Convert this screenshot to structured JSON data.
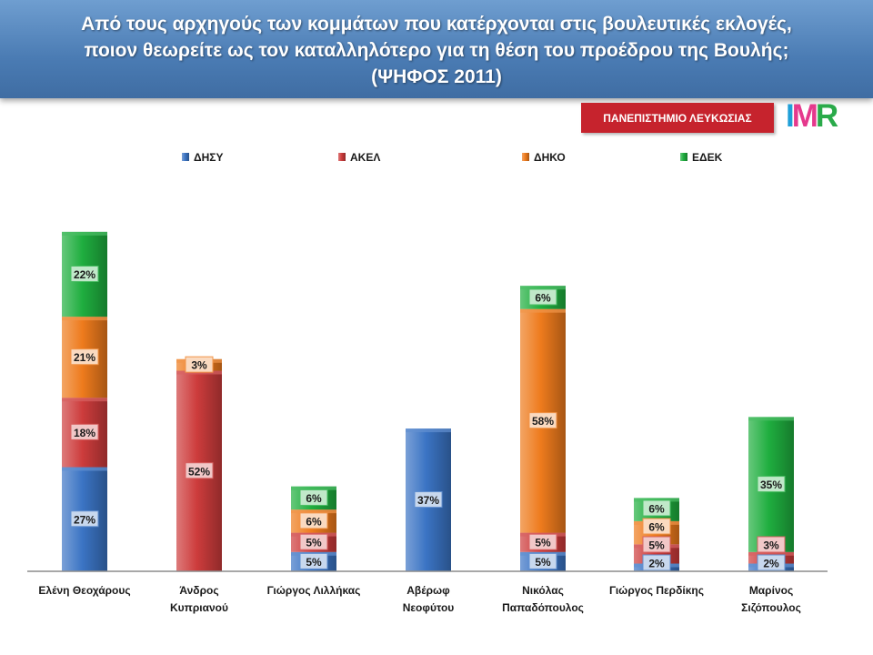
{
  "title": "Από τους αρχηγούς των κομμάτων που κατέρχονται στις βουλευτικές εκλογές, ποιον θεωρείτε ως τον καταλληλότερο για τη θέση του προέδρου της Βουλής; (ΨΗΦΟΣ 2011)",
  "badge": "ΠΑΝΕΠΙΣΤΗΜΙΟ ΛΕΥΚΩΣΙΑΣ",
  "logo": {
    "text": "IMR",
    "colors": [
      "#1f9fd8",
      "#e5398d",
      "#2aaa4a"
    ]
  },
  "chart_data": {
    "type": "bar",
    "stacked": true,
    "categories": [
      [
        "Ελένη Θεοχάρους"
      ],
      [
        "Άνδρος",
        "Κυπριανού"
      ],
      [
        "Γιώργος Λιλλήκας"
      ],
      [
        "Αβέρωφ",
        "Νεοφύτου"
      ],
      [
        "Νικόλας",
        "Παπαδόπουλος"
      ],
      [
        "Γιώργος Περδίκης"
      ],
      [
        "Μαρίνος",
        "Σιζόπουλος"
      ]
    ],
    "series": [
      {
        "name": "ΔΗΣΥ",
        "color": "#3b74c4",
        "values": [
          27,
          0,
          5,
          37,
          5,
          2,
          2
        ]
      },
      {
        "name": "ΑΚΕΛ",
        "color": "#cd3c3c",
        "values": [
          18,
          52,
          5,
          0,
          5,
          5,
          3
        ]
      },
      {
        "name": "ΔΗΚΟ",
        "color": "#ee7b1d",
        "values": [
          21,
          3,
          6,
          0,
          58,
          6,
          0
        ]
      },
      {
        "name": "ΕΔΕΚ",
        "color": "#1fae3f",
        "values": [
          22,
          0,
          6,
          0,
          6,
          6,
          35
        ]
      }
    ],
    "value_suffix": "%",
    "legend_position": "top",
    "grid": false,
    "ylim": [
      0,
      90
    ]
  }
}
